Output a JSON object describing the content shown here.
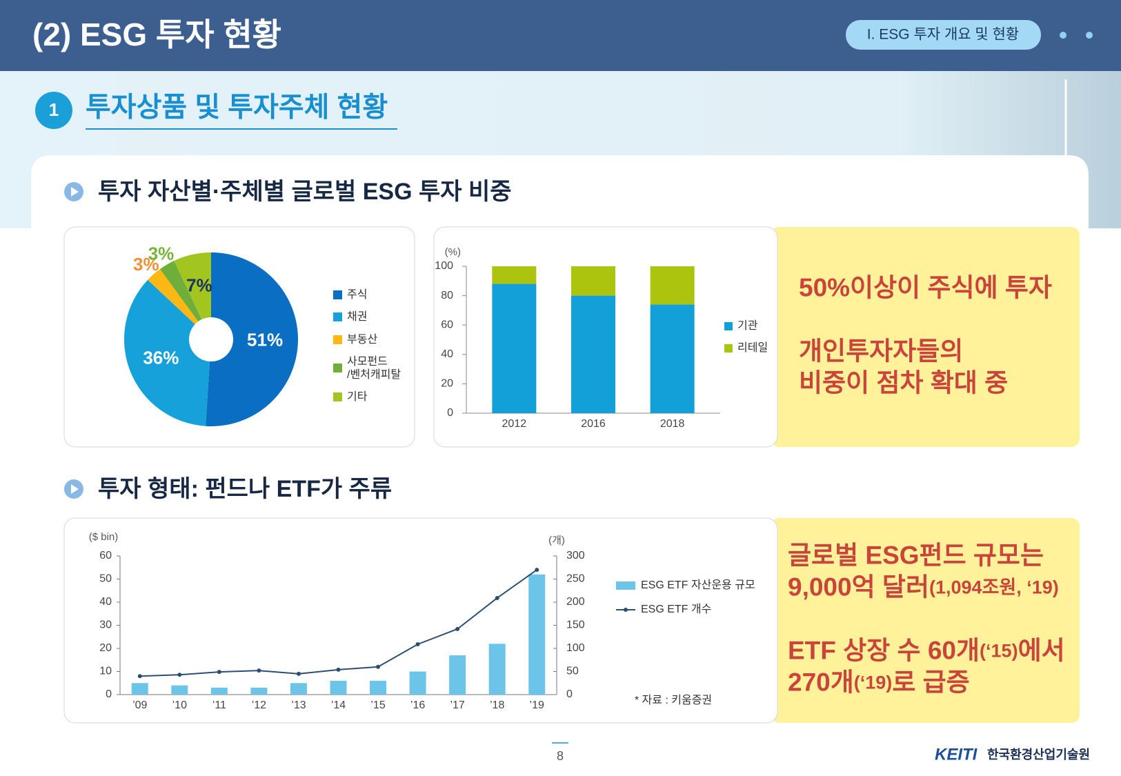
{
  "header": {
    "title": "(2) ESG 투자 현황",
    "badge": "I. ESG 투자 개요 및 현황"
  },
  "section": {
    "number": "1",
    "title": "투자상품 및 투자주체 현황"
  },
  "subsections": [
    {
      "title": "투자 자산별·주체별 글로벌 ESG 투자 비중"
    },
    {
      "title": "투자 형태: 펀드나 ETF가 주류"
    }
  ],
  "chart_data": [
    {
      "type": "pie",
      "categories": [
        "주식",
        "채권",
        "부동산",
        "사모펀드\n/벤처캐피탈",
        "기타"
      ],
      "values": [
        51,
        36,
        3,
        3,
        7
      ],
      "value_labels": [
        "51%",
        "36%",
        "3%",
        "3%",
        "7%"
      ],
      "colors": [
        "#0a6fc2",
        "#17a1da",
        "#fdb813",
        "#6fae3a",
        "#a3c520"
      ],
      "label_colors": [
        "#ffffff",
        "#ffffff",
        "#f0913a",
        "#7ab33a",
        "#1b3560"
      ]
    },
    {
      "type": "bar",
      "stacked": true,
      "y_label": "(%)",
      "categories": [
        "2012",
        "2016",
        "2018"
      ],
      "series": [
        {
          "name": "기관",
          "color": "#139fd8",
          "values": [
            88,
            80,
            74
          ]
        },
        {
          "name": "리테일",
          "color": "#adc40f",
          "values": [
            12,
            20,
            26
          ]
        }
      ],
      "ylim": [
        0,
        100
      ],
      "yticks": [
        0,
        20,
        40,
        60,
        80,
        100
      ]
    },
    {
      "type": "combo",
      "y_label": "($ bin)",
      "y2_label": "(개)",
      "categories": [
        "’09",
        "’10",
        "’11",
        "’12",
        "’13",
        "’14",
        "’15",
        "’16",
        "’17",
        "’18",
        "’19"
      ],
      "series": [
        {
          "name": "ESG ETF 자산운용 규모",
          "type": "bar",
          "color": "#6cc5e9",
          "values": [
            5,
            4,
            3,
            3,
            5,
            6,
            6,
            10,
            17,
            22,
            52
          ]
        },
        {
          "name": "ESG ETF 개수",
          "type": "line",
          "axis": "y2",
          "color": "#2d4d73",
          "values": [
            40,
            43,
            49,
            52,
            45,
            54,
            60,
            109,
            142,
            209,
            270
          ]
        }
      ],
      "ylim": [
        0,
        60
      ],
      "yticks": [
        0,
        10,
        20,
        30,
        40,
        50,
        60
      ],
      "y2lim": [
        0,
        300
      ],
      "y2ticks": [
        0,
        50,
        100,
        150,
        200,
        250,
        300
      ],
      "source": "* 자료 : 키움증권"
    }
  ],
  "callouts": [
    {
      "paragraphs": [
        {
          "lines": [
            [
              {
                "text": "50%이상이 주식에 투자"
              }
            ]
          ]
        },
        {
          "lines": [
            [
              {
                "text": "개인투자자들의"
              }
            ],
            [
              {
                "text": "비중이 점차 확대 중"
              }
            ]
          ]
        }
      ]
    },
    {
      "paragraphs": [
        {
          "lines": [
            [
              {
                "text": "글로벌 ESG펀드 규모는"
              }
            ],
            [
              {
                "text": "9,000억 달러"
              },
              {
                "text": "(1,094조원, ‘19)",
                "size": "small"
              }
            ]
          ]
        },
        {
          "lines": [
            [
              {
                "text": "ETF 상장 수 60개"
              },
              {
                "text": "(‘15)",
                "size": "small"
              },
              {
                "text": "에서"
              }
            ],
            [
              {
                "text": "270개"
              },
              {
                "text": "(‘19)",
                "size": "small"
              },
              {
                "text": "로 급증"
              }
            ]
          ]
        }
      ]
    }
  ],
  "footer": {
    "page": "8",
    "logo": "KEITI",
    "org": "한국환경산업기술원"
  }
}
